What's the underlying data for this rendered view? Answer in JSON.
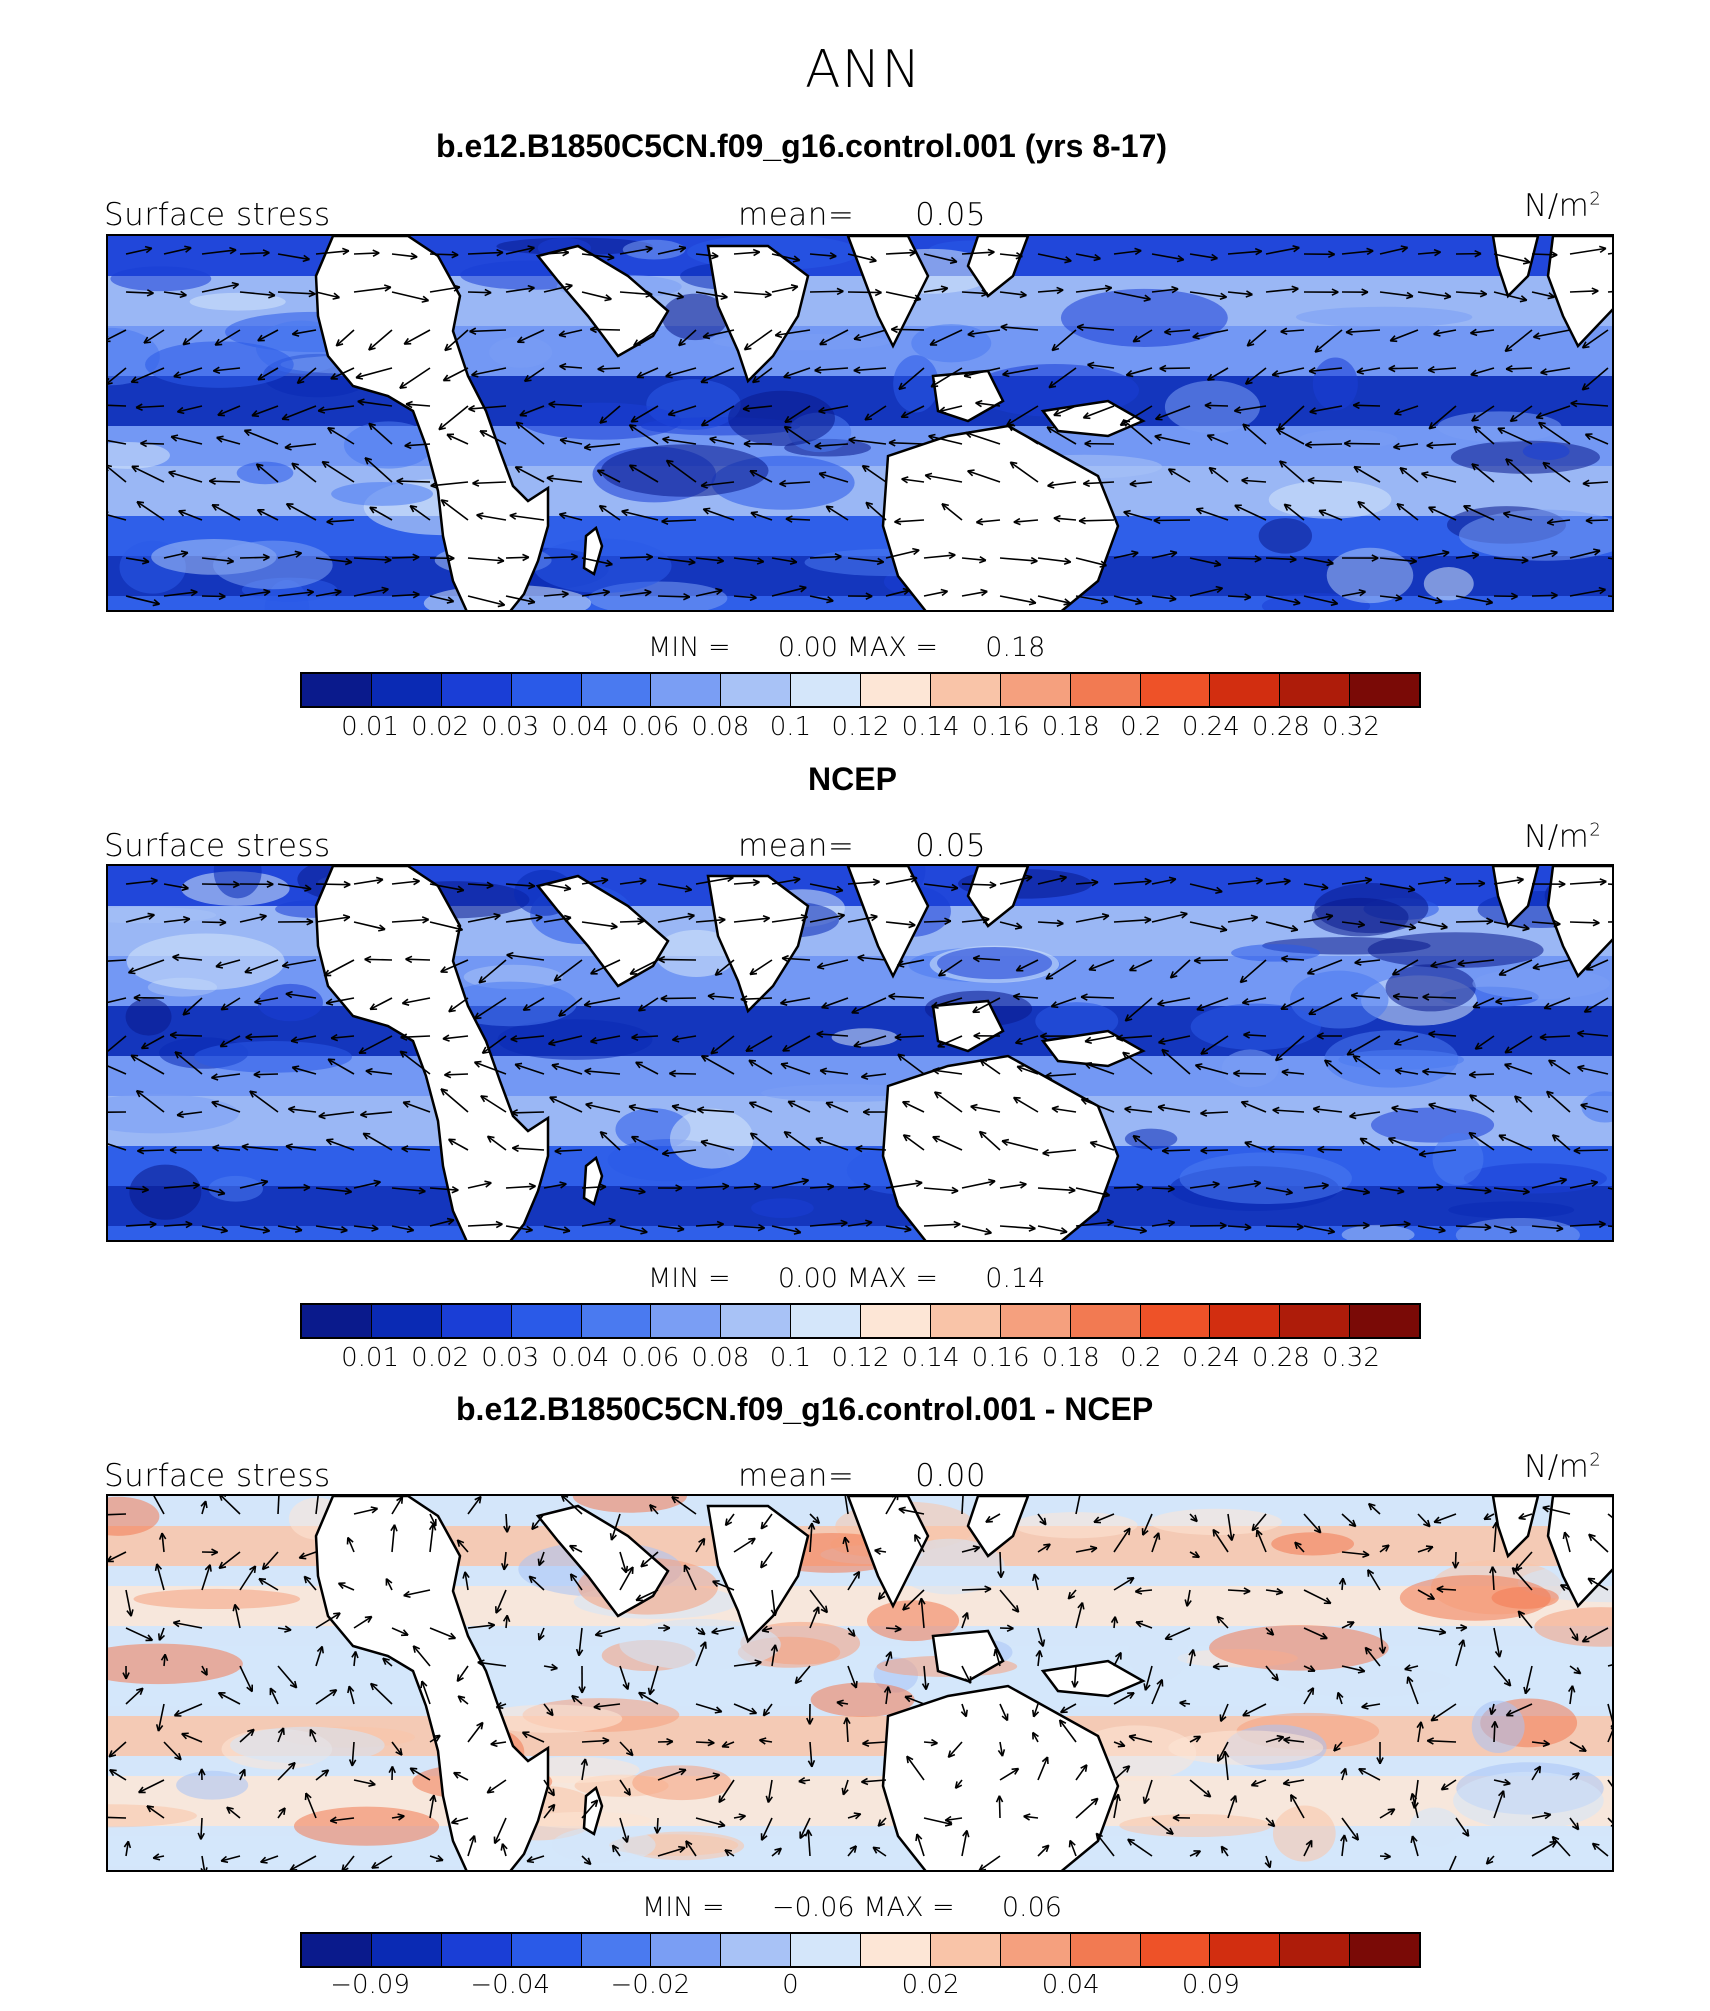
{
  "title": "ANN",
  "colors": {
    "palette": [
      "#0a1a8c",
      "#0a2ab4",
      "#1a3ed6",
      "#2a5ae8",
      "#4a7af0",
      "#7a9ef4",
      "#a8c2f6",
      "#d4e6fa",
      "#fde6d6",
      "#f9c4a8",
      "#f5a07e",
      "#f27a52",
      "#ee5228",
      "#d22e10",
      "#ae1c0a",
      "#7a0a06"
    ],
    "land": "#ffffff",
    "coast": "#000000",
    "arrow": "#000000"
  },
  "panels": [
    {
      "title": "b.e12.B1850C5CN.f09_g16.control.001 (yrs 8-17)",
      "left_label": "Surface stress",
      "mean_label": "mean=",
      "mean_value": "0.05",
      "units": "N/m",
      "units_sup": "2",
      "min_label": "MIN =",
      "min_value": "0.00",
      "max_label": "MAX =",
      "max_value": "0.18",
      "colorbar_ticks": [
        "0.01",
        "0.02",
        "0.03",
        "0.04",
        "0.06",
        "0.08",
        "0.1",
        "0.12",
        "0.14",
        "0.16",
        "0.18",
        "0.2",
        "0.24",
        "0.28",
        "0.32"
      ],
      "type": "full"
    },
    {
      "title": "NCEP",
      "left_label": "Surface stress",
      "mean_label": "mean=",
      "mean_value": "0.05",
      "units": "N/m",
      "units_sup": "2",
      "min_label": "MIN =",
      "min_value": "0.00",
      "max_label": "MAX =",
      "max_value": "0.14",
      "colorbar_ticks": [
        "0.01",
        "0.02",
        "0.03",
        "0.04",
        "0.06",
        "0.08",
        "0.1",
        "0.12",
        "0.14",
        "0.16",
        "0.18",
        "0.2",
        "0.24",
        "0.28",
        "0.32"
      ],
      "type": "full"
    },
    {
      "title": "b.e12.B1850C5CN.f09_g16.control.001 - NCEP",
      "left_label": "Surface stress",
      "mean_label": "mean=",
      "mean_value": "0.00",
      "units": "N/m",
      "units_sup": "2",
      "min_label": "MIN =",
      "min_value": "−0.06",
      "max_label": "MAX =",
      "max_value": "0.06",
      "colorbar_ticks": [
        "−0.09",
        "−0.04",
        "−0.02",
        "0",
        "0.02",
        "0.04",
        "0.09"
      ],
      "type": "diff"
    }
  ]
}
